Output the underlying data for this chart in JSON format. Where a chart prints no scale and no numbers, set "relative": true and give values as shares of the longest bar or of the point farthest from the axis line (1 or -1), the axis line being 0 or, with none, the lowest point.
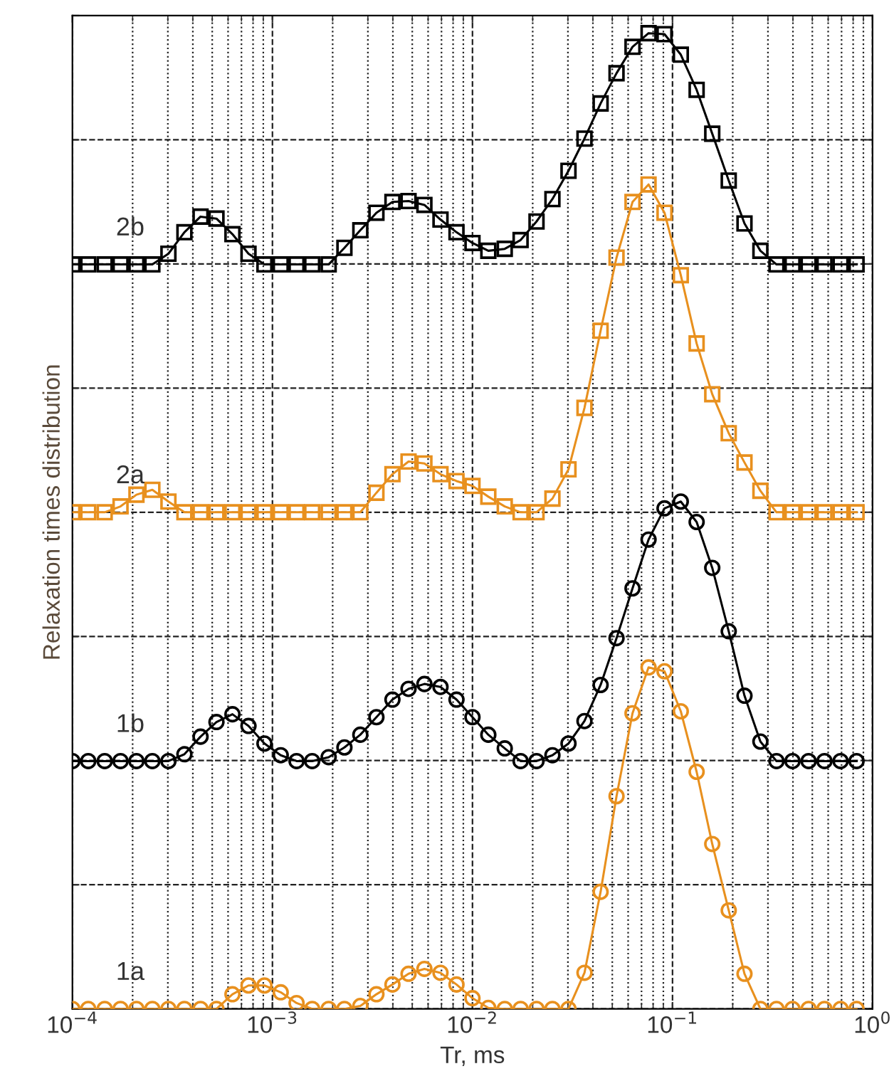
{
  "chart_data": {
    "type": "line",
    "relative": true,
    "log": "x",
    "grid": true,
    "legend": false,
    "xlabel": "Tr, ms",
    "ylabel": "Relaxation times distribution",
    "xlim": [
      0.0001,
      1
    ],
    "xticks": [
      {
        "value": 0.0001,
        "label": "10$^{−4}$"
      },
      {
        "value": 0.001,
        "label": "10$^{−3}$"
      },
      {
        "value": 0.01,
        "label": "10$^{−2}$"
      },
      {
        "value": 0.1,
        "label": "10$^{−1}$"
      },
      {
        "value": 1,
        "label": "10$^{0}$"
      }
    ],
    "x": [
      0.0001,
      0.00012,
      0.000145,
      0.000174,
      0.000209,
      0.000251,
      0.000302,
      0.000363,
      0.000437,
      0.000525,
      0.000631,
      0.000759,
      0.000912,
      0.0011,
      0.00132,
      0.00158,
      0.00191,
      0.00229,
      0.00275,
      0.00331,
      0.00398,
      0.00479,
      0.00575,
      0.00692,
      0.00832,
      0.01,
      0.012,
      0.0145,
      0.0174,
      0.0209,
      0.0251,
      0.0302,
      0.0363,
      0.0437,
      0.0525,
      0.0631,
      0.0759,
      0.0912,
      0.11,
      0.132,
      0.158,
      0.191,
      0.229,
      0.275,
      0.331,
      0.398,
      0.479,
      0.575,
      0.692,
      0.832
    ],
    "series": [
      {
        "name": "1a",
        "color": "#e8901e",
        "marker": "circle",
        "values": [
          0,
          0,
          0,
          0,
          0,
          0,
          0,
          0,
          0,
          0,
          0.015,
          0.024,
          0.024,
          0.017,
          0.006,
          0,
          0,
          0,
          0.003,
          0.015,
          0.025,
          0.036,
          0.041,
          0.037,
          0.025,
          0.011,
          0.001,
          0,
          0,
          0,
          0,
          0,
          0.037,
          0.12,
          0.218,
          0.303,
          0.35,
          0.346,
          0.305,
          0.243,
          0.169,
          0.101,
          0.036,
          0,
          0,
          0,
          0,
          0,
          0,
          0
        ]
      },
      {
        "name": "1b",
        "color": "#000000",
        "marker": "circle",
        "values": [
          0.254,
          0.254,
          0.254,
          0.254,
          0.254,
          0.254,
          0.254,
          0.261,
          0.279,
          0.294,
          0.302,
          0.29,
          0.272,
          0.26,
          0.254,
          0.254,
          0.258,
          0.268,
          0.281,
          0.299,
          0.317,
          0.328,
          0.333,
          0.33,
          0.317,
          0.299,
          0.281,
          0.267,
          0.254,
          0.254,
          0.26,
          0.272,
          0.295,
          0.332,
          0.38,
          0.431,
          0.481,
          0.513,
          0.52,
          0.499,
          0.452,
          0.387,
          0.321,
          0.274,
          0.254,
          0.254,
          0.254,
          0.254,
          0.254,
          0.254
        ]
      },
      {
        "name": "2a",
        "color": "#e8901e",
        "marker": "square",
        "values": [
          0.509,
          0.509,
          0.509,
          0.515,
          0.527,
          0.532,
          0.52,
          0.509,
          0.509,
          0.509,
          0.509,
          0.509,
          0.509,
          0.509,
          0.509,
          0.509,
          0.509,
          0.509,
          0.509,
          0.529,
          0.548,
          0.561,
          0.559,
          0.548,
          0.541,
          0.536,
          0.525,
          0.515,
          0.509,
          0.509,
          0.523,
          0.553,
          0.616,
          0.695,
          0.77,
          0.827,
          0.845,
          0.816,
          0.752,
          0.682,
          0.63,
          0.59,
          0.56,
          0.531,
          0.509,
          0.509,
          0.509,
          0.509,
          0.509,
          0.509
        ]
      },
      {
        "name": "2b",
        "color": "#000000",
        "marker": "square",
        "values": [
          0.763,
          0.763,
          0.763,
          0.763,
          0.763,
          0.763,
          0.774,
          0.796,
          0.812,
          0.81,
          0.794,
          0.774,
          0.763,
          0.763,
          0.763,
          0.763,
          0.763,
          0.78,
          0.798,
          0.816,
          0.827,
          0.828,
          0.824,
          0.809,
          0.796,
          0.785,
          0.777,
          0.779,
          0.788,
          0.807,
          0.83,
          0.859,
          0.892,
          0.928,
          0.959,
          0.986,
          1,
          0.999,
          0.978,
          0.942,
          0.897,
          0.849,
          0.805,
          0.777,
          0.763,
          0.763,
          0.763,
          0.763,
          0.763,
          0.763
        ]
      }
    ]
  }
}
